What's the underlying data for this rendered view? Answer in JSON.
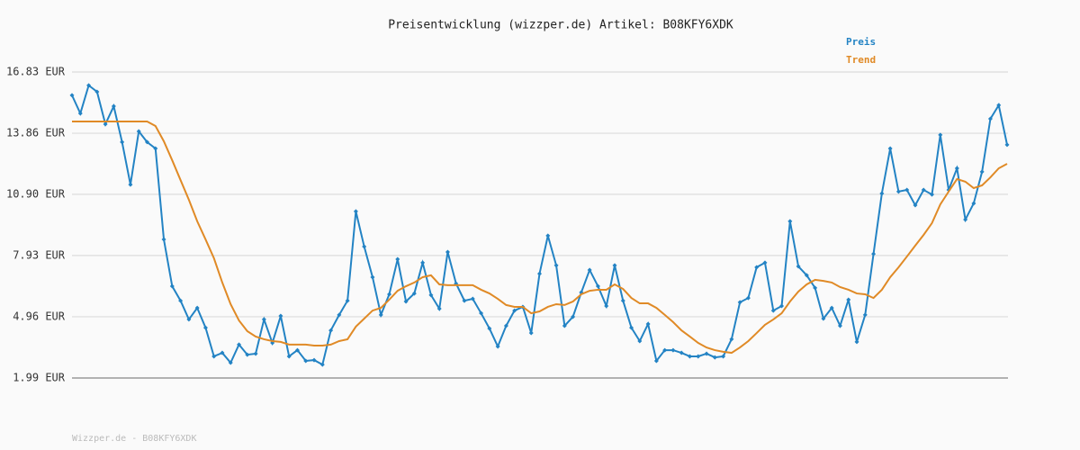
{
  "chart_data": {
    "type": "line",
    "title": "Preisentwicklung (wizzper.de) Artikel: B08KFY6XDK",
    "source": "Wizzper.de - B08KFY6XDK",
    "ylim": [
      1.99,
      16.83
    ],
    "yticks": [
      {
        "value": 1.99,
        "label": "1.99 EUR"
      },
      {
        "value": 4.96,
        "label": "4.96 EUR"
      },
      {
        "value": 7.93,
        "label": "7.93 EUR"
      },
      {
        "value": 10.9,
        "label": "10.90 EUR"
      },
      {
        "value": 13.86,
        "label": "13.86 EUR"
      },
      {
        "value": 16.83,
        "label": "16.83 EUR"
      }
    ],
    "grid": true,
    "legend": "top-right",
    "series": [
      {
        "name": "Preis",
        "color": "#2383c4",
        "markers": true,
        "values": [
          15.7,
          14.82,
          16.18,
          15.87,
          14.3,
          15.17,
          13.43,
          11.37,
          13.95,
          13.43,
          13.12,
          8.71,
          6.44,
          5.74,
          4.83,
          5.39,
          4.43,
          3.04,
          3.21,
          2.73,
          3.61,
          3.12,
          3.17,
          4.83,
          3.69,
          5.0,
          3.04,
          3.34,
          2.82,
          2.86,
          2.64,
          4.3,
          5.05,
          5.74,
          10.07,
          8.36,
          6.88,
          5.05,
          6.05,
          7.75,
          5.7,
          6.09,
          7.58,
          6.01,
          5.35,
          8.1,
          6.57,
          5.74,
          5.83,
          5.13,
          4.39,
          3.52,
          4.52,
          5.26,
          5.44,
          4.17,
          7.05,
          8.89,
          7.45,
          4.52,
          4.96,
          6.14,
          7.23,
          6.44,
          5.48,
          7.45,
          5.74,
          4.43,
          3.78,
          4.61,
          2.82,
          3.34,
          3.34,
          3.21,
          3.04,
          3.04,
          3.17,
          2.99,
          3.04,
          3.87,
          5.66,
          5.87,
          7.36,
          7.58,
          5.26,
          5.48,
          9.59,
          7.4,
          6.97,
          6.36,
          4.87,
          5.39,
          4.52,
          5.79,
          3.74,
          5.05,
          8.01,
          10.94,
          13.12,
          11.03,
          11.11,
          10.37,
          11.11,
          10.89,
          13.78,
          11.11,
          12.16,
          9.67,
          10.46,
          11.99,
          14.56,
          15.22,
          13.3
        ]
      },
      {
        "name": "Trend",
        "color": "#e08a26",
        "markers": false,
        "values": [
          14.43,
          14.43,
          14.43,
          14.43,
          14.43,
          14.43,
          14.43,
          14.43,
          14.43,
          14.43,
          14.21,
          13.47,
          12.55,
          11.59,
          10.63,
          9.59,
          8.71,
          7.8,
          6.62,
          5.57,
          4.78,
          4.26,
          4.0,
          3.87,
          3.78,
          3.74,
          3.61,
          3.61,
          3.61,
          3.56,
          3.56,
          3.61,
          3.78,
          3.87,
          4.48,
          4.87,
          5.26,
          5.39,
          5.79,
          6.22,
          6.44,
          6.62,
          6.88,
          6.97,
          6.53,
          6.49,
          6.49,
          6.49,
          6.49,
          6.27,
          6.09,
          5.83,
          5.53,
          5.44,
          5.44,
          5.13,
          5.22,
          5.44,
          5.57,
          5.53,
          5.7,
          6.05,
          6.22,
          6.27,
          6.27,
          6.53,
          6.31,
          5.87,
          5.61,
          5.61,
          5.39,
          5.05,
          4.7,
          4.3,
          4.0,
          3.69,
          3.47,
          3.34,
          3.26,
          3.21,
          3.47,
          3.78,
          4.17,
          4.57,
          4.83,
          5.13,
          5.7,
          6.18,
          6.53,
          6.75,
          6.7,
          6.62,
          6.4,
          6.27,
          6.09,
          6.05,
          5.87,
          6.27,
          6.88,
          7.36,
          7.88,
          8.41,
          8.93,
          9.5,
          10.41,
          11.03,
          11.64,
          11.51,
          11.2,
          11.33,
          11.72,
          12.16,
          12.38
        ]
      }
    ]
  }
}
